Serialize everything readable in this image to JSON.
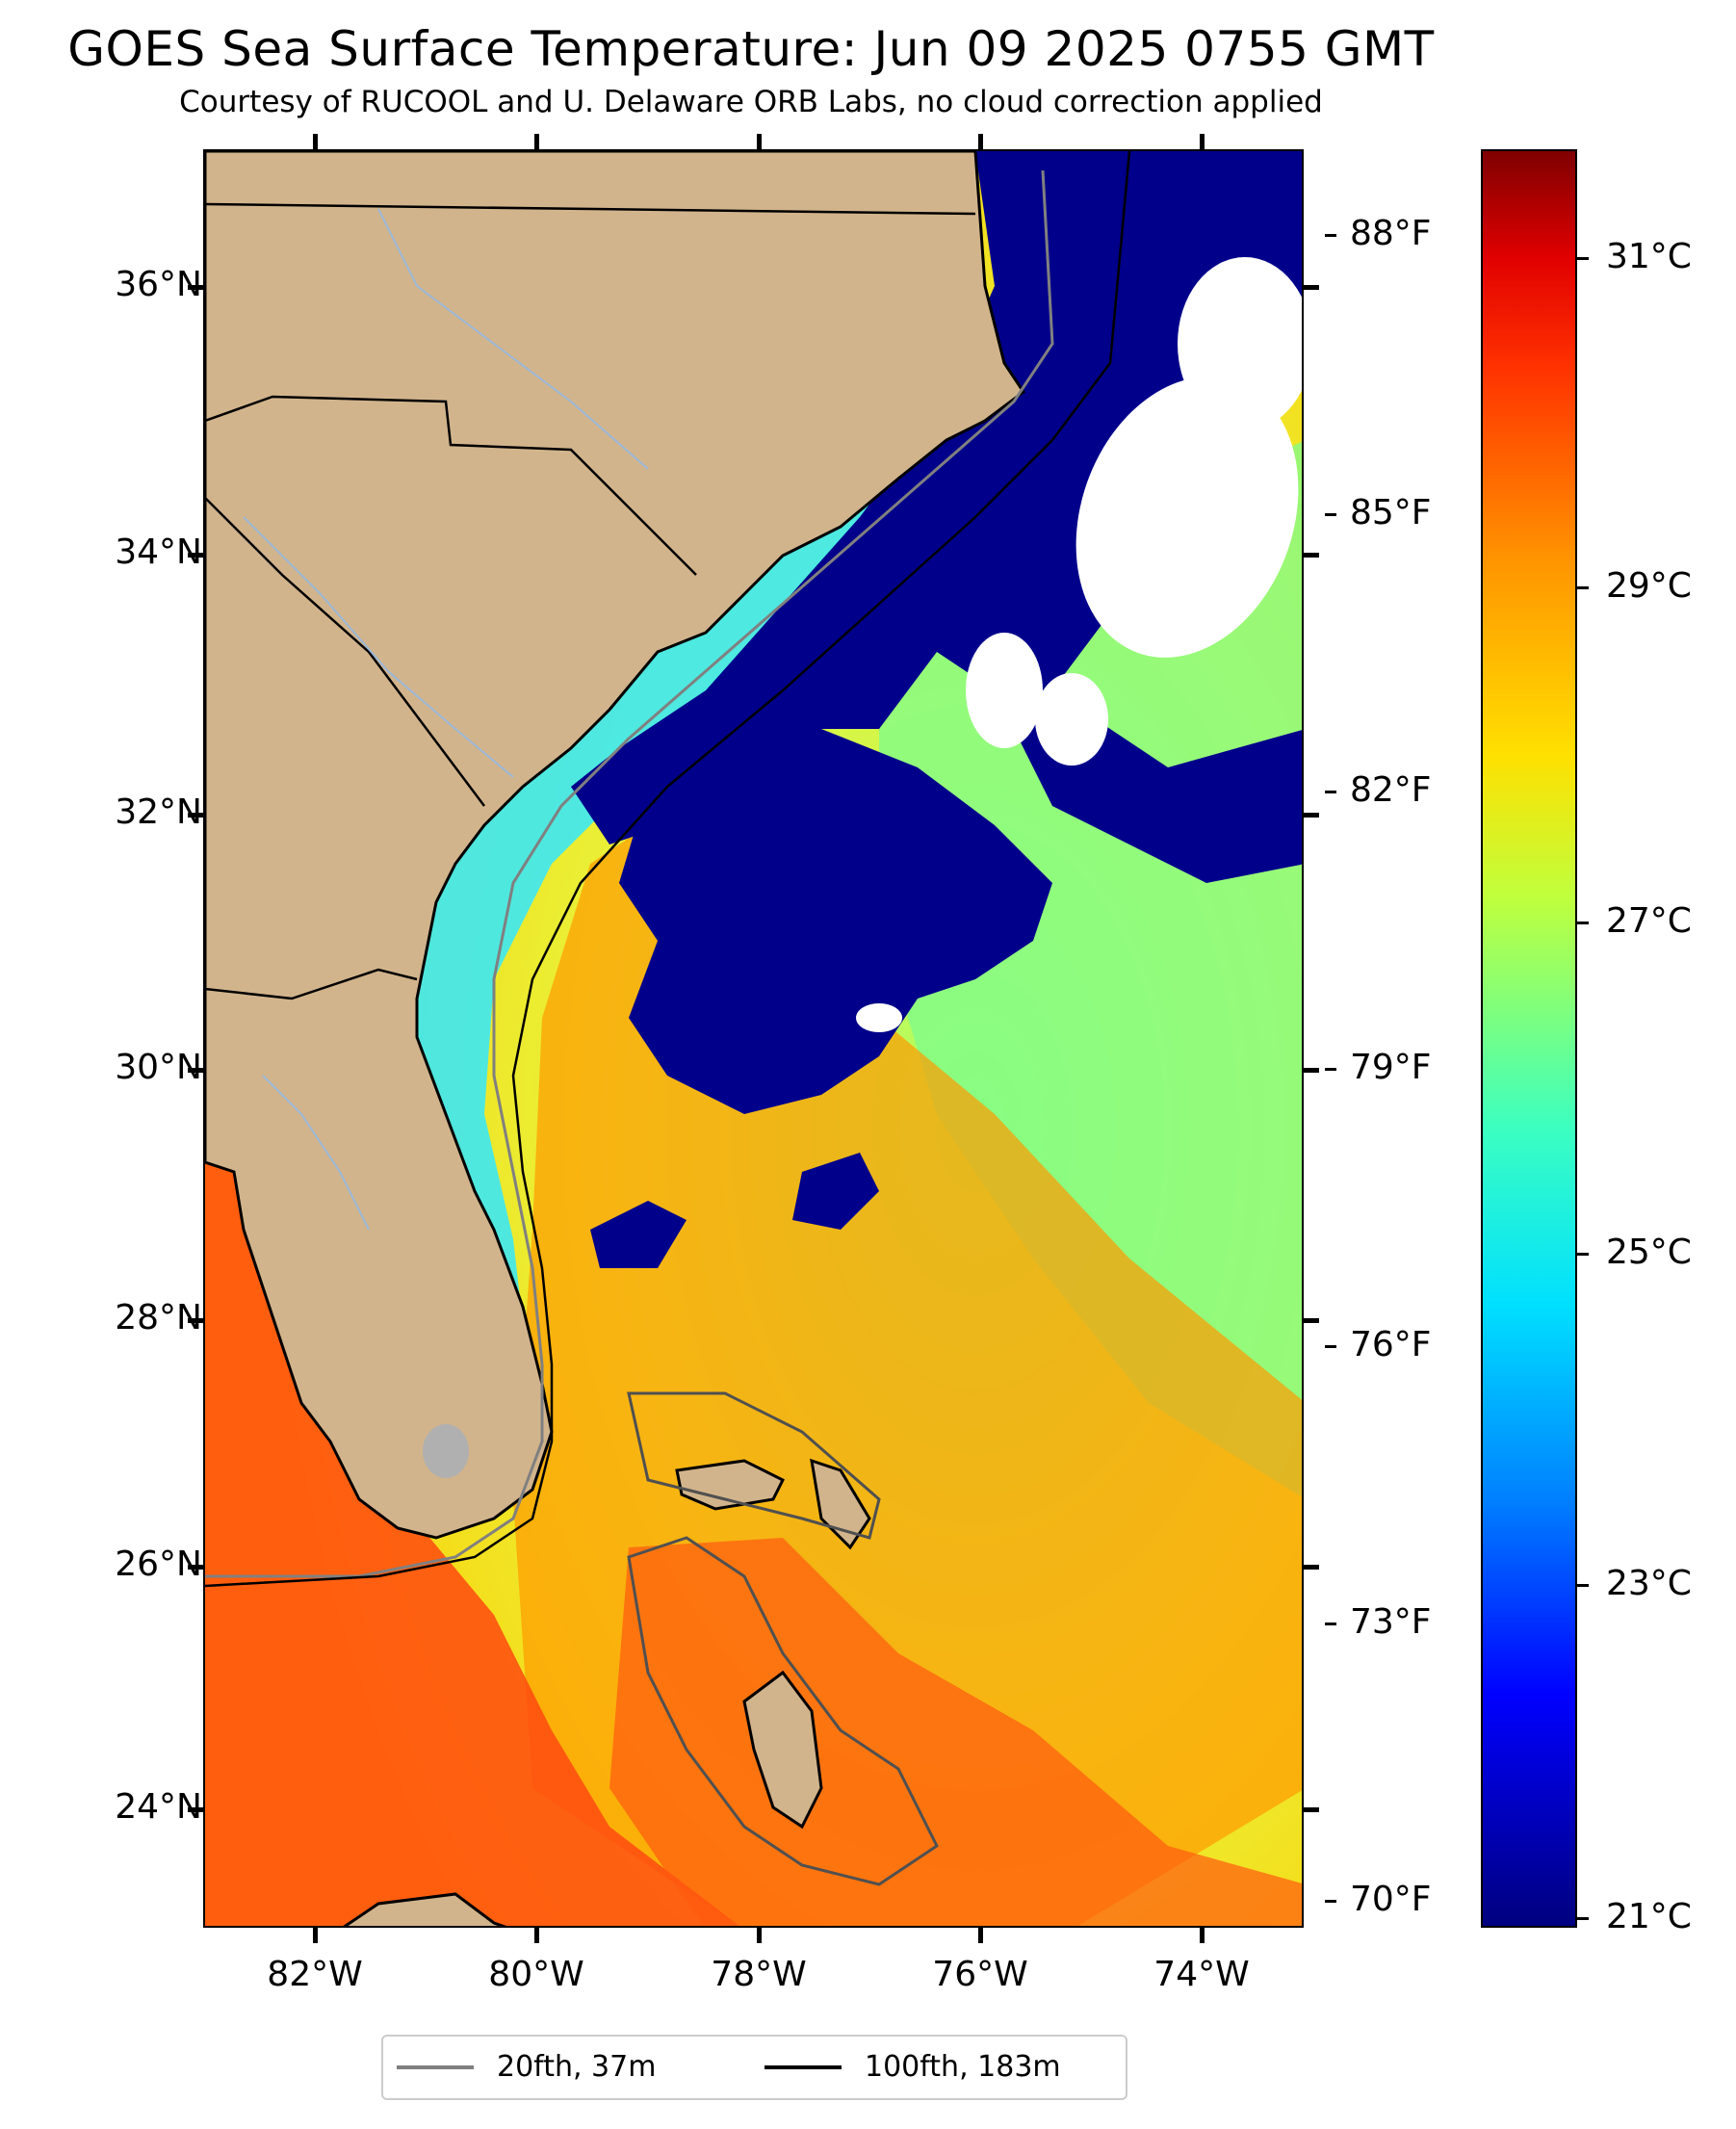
{
  "title": "GOES Sea Surface Temperature: Jun 09 2025 0755 GMT",
  "subtitle": "Courtesy of RUCOOL and U. Delaware ORB Labs, no cloud correction applied",
  "map": {
    "lon_range": [
      -83,
      -73
    ],
    "lat_range": [
      23.1,
      37.1
    ],
    "lat_ticks": [
      {
        "value": 36,
        "label": "36°N"
      },
      {
        "value": 34,
        "label": "34°N"
      },
      {
        "value": 32,
        "label": "32°N"
      },
      {
        "value": 30,
        "label": "30°N"
      },
      {
        "value": 28,
        "label": "28°N"
      },
      {
        "value": 26,
        "label": "26°N"
      },
      {
        "value": 24,
        "label": "24°N"
      }
    ],
    "lon_ticks": [
      {
        "value": -82,
        "label": "82°W"
      },
      {
        "value": -80,
        "label": "80°W"
      },
      {
        "value": -78,
        "label": "78°W"
      },
      {
        "value": -76,
        "label": "76°W"
      },
      {
        "value": -74,
        "label": "74°W"
      }
    ],
    "colors": {
      "land": "#d2b48c",
      "cloud_mask": "#00008b",
      "no_data": "#ffffff",
      "lake": "#b0b0b0",
      "rivers": "#9bb8d8"
    }
  },
  "colorbar": {
    "colormap": "jet",
    "celsius_labels": [
      "31°C",
      "29°C",
      "27°C",
      "25°C",
      "23°C",
      "21°C"
    ],
    "fahrenheit_labels": [
      "88°F",
      "85°F",
      "82°F",
      "79°F",
      "76°F",
      "73°F",
      "70°F"
    ]
  },
  "legend": [
    {
      "label": "20fth, 37m",
      "color": "#808080"
    },
    {
      "label": "100fth, 183m",
      "color": "#000000"
    }
  ]
}
